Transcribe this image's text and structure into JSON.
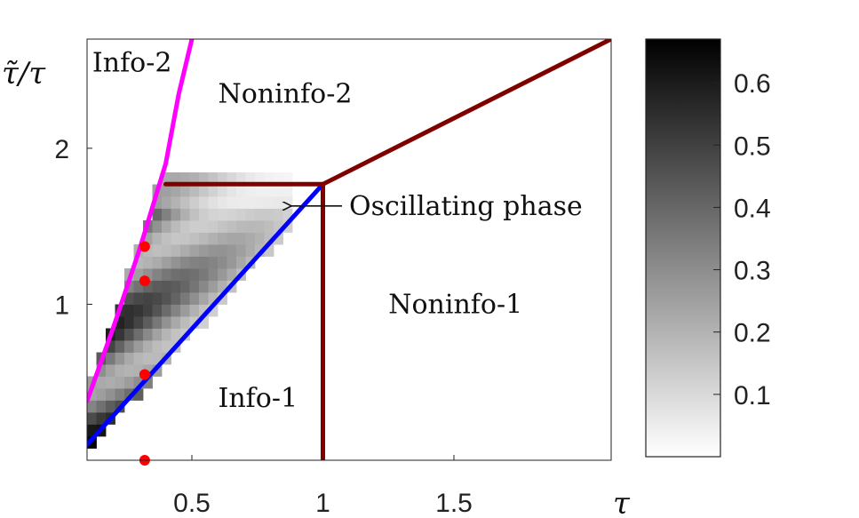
{
  "chart_data": {
    "type": "heatmap",
    "title": "",
    "xlabel": "τ",
    "ylabel": "τ̃/τ",
    "xlim": [
      0.1,
      2.1
    ],
    "ylim": [
      0,
      2.7
    ],
    "x_ticks": [
      {
        "value": 0.5,
        "label": "0.5"
      },
      {
        "value": 1,
        "label": "1"
      },
      {
        "value": 1.5,
        "label": "1.5"
      }
    ],
    "y_ticks": [
      {
        "value": 1,
        "label": "1"
      },
      {
        "value": 2,
        "label": "2"
      }
    ],
    "colorbar": {
      "min": 0,
      "max": 0.67,
      "ticks": [
        {
          "value": 0.1,
          "label": "0.1"
        },
        {
          "value": 0.2,
          "label": "0.2"
        },
        {
          "value": 0.3,
          "label": "0.3"
        },
        {
          "value": 0.4,
          "label": "0.4"
        },
        {
          "value": 0.5,
          "label": "0.5"
        },
        {
          "value": 0.6,
          "label": "0.6"
        }
      ],
      "colors": [
        "#ffffff",
        "#000000"
      ]
    },
    "heatmap_band": {
      "lower_boundary": "y = x",
      "upper_boundary": "magenta curve",
      "peak_value": 0.67,
      "extent_x": [
        0.1,
        0.9
      ]
    },
    "lines": [
      {
        "name": "magenta",
        "color": "#ff00ff",
        "points": [
          [
            0.1,
            0.38
          ],
          [
            0.2,
            0.85
          ],
          [
            0.3,
            1.35
          ],
          [
            0.4,
            1.9
          ],
          [
            0.45,
            2.35
          ],
          [
            0.5,
            2.7
          ]
        ]
      },
      {
        "name": "blue",
        "color": "#0000ff",
        "points": [
          [
            0.1,
            0.1
          ],
          [
            1.0,
            1.77
          ]
        ]
      },
      {
        "name": "dark-red-box-top",
        "color": "#800000",
        "points": [
          [
            0.4,
            1.77
          ],
          [
            1.0,
            1.77
          ]
        ]
      },
      {
        "name": "dark-red-vertical",
        "color": "#800000",
        "points": [
          [
            1.0,
            0
          ],
          [
            1.0,
            1.77
          ]
        ]
      },
      {
        "name": "dark-red-diagonal",
        "color": "#800000",
        "points": [
          [
            1.0,
            1.77
          ],
          [
            2.1,
            2.7
          ]
        ]
      }
    ],
    "points": {
      "color": "#ff0000",
      "values": [
        [
          0.32,
          1.37
        ],
        [
          0.32,
          1.15
        ],
        [
          0.32,
          0.55
        ],
        [
          0.32,
          0.0
        ]
      ]
    },
    "annotations": [
      {
        "text": "Info-2",
        "x": 0.12,
        "y": 2.55
      },
      {
        "text": "Noninfo-2",
        "x": 0.6,
        "y": 2.35
      },
      {
        "text": "Oscillating phase",
        "x": 1.1,
        "y": 1.63,
        "arrow_to": [
          0.88,
          1.63
        ]
      },
      {
        "text": "Noninfo-1",
        "x": 1.25,
        "y": 1.0
      },
      {
        "text": "Info-1",
        "x": 0.6,
        "y": 0.4
      }
    ]
  }
}
